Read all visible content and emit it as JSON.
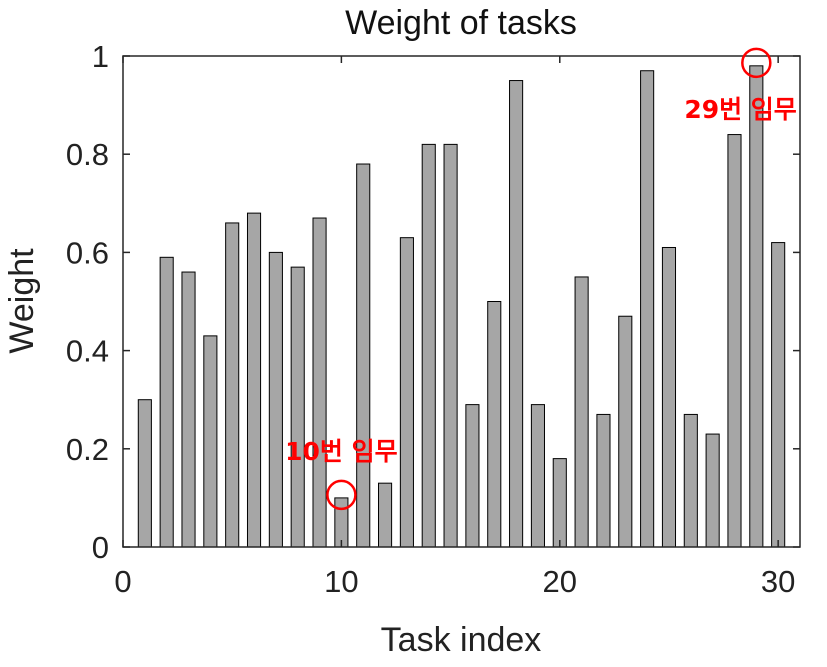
{
  "chart_data": {
    "type": "bar",
    "title": "Weight of tasks",
    "xlabel": "Task index",
    "ylabel": "Weight",
    "xlim": [
      0,
      31
    ],
    "ylim": [
      0,
      1
    ],
    "xticks": [
      0,
      10,
      20,
      30
    ],
    "yticks": [
      0,
      0.2,
      0.4,
      0.6,
      0.8,
      1
    ],
    "ytick_labels": [
      "0",
      "0.2",
      "0.4",
      "0.6",
      "0.8",
      "1"
    ],
    "x": [
      1,
      2,
      3,
      4,
      5,
      6,
      7,
      8,
      9,
      10,
      11,
      12,
      13,
      14,
      15,
      16,
      17,
      18,
      19,
      20,
      21,
      22,
      23,
      24,
      25,
      26,
      27,
      28,
      29,
      30
    ],
    "values": [
      0.3,
      0.59,
      0.56,
      0.43,
      0.66,
      0.68,
      0.6,
      0.57,
      0.67,
      0.1,
      0.78,
      0.13,
      0.63,
      0.82,
      0.82,
      0.29,
      0.5,
      0.95,
      0.29,
      0.18,
      0.55,
      0.27,
      0.47,
      0.97,
      0.61,
      0.27,
      0.23,
      0.84,
      0.98,
      0.62
    ],
    "bar_color": "#a6a6a6",
    "bar_edge_color": "#000000",
    "grid": false,
    "annotations": [
      {
        "text": "10번 임무",
        "x": 10,
        "y": 0.1,
        "color": "#ff0000"
      },
      {
        "text": "29번 임무",
        "x": 29,
        "y": 0.98,
        "color": "#ff0000"
      }
    ]
  }
}
